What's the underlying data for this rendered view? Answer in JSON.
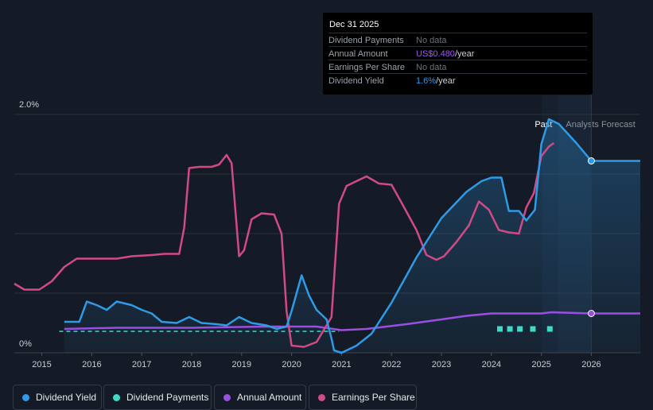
{
  "chart_data": {
    "type": "line",
    "title": "",
    "xlabel": "",
    "ylabel": "",
    "x_range": [
      2014.45,
      2026.98
    ],
    "y_range": [
      0,
      2.0
    ],
    "y_ticks": [
      {
        "value": 2.0,
        "label": "2.0%"
      },
      {
        "value": 0,
        "label": "0%"
      }
    ],
    "x_ticks": [
      "2015",
      "2016",
      "2017",
      "2018",
      "2019",
      "2020",
      "2021",
      "2022",
      "2023",
      "2024",
      "2025",
      "2026"
    ],
    "past_label": "Past",
    "forecast_label": "Analysts Forecast",
    "forecast_start": 2025.33,
    "series": [
      {
        "name": "Dividend Yield",
        "color": "#2f9ae6",
        "area": true,
        "points": [
          [
            2015.45,
            0.26
          ],
          [
            2015.75,
            0.26
          ],
          [
            2015.9,
            0.43
          ],
          [
            2016.1,
            0.4
          ],
          [
            2016.3,
            0.36
          ],
          [
            2016.5,
            0.43
          ],
          [
            2016.8,
            0.4
          ],
          [
            2017.0,
            0.36
          ],
          [
            2017.2,
            0.33
          ],
          [
            2017.4,
            0.26
          ],
          [
            2017.7,
            0.25
          ],
          [
            2017.95,
            0.3
          ],
          [
            2018.2,
            0.25
          ],
          [
            2018.5,
            0.24
          ],
          [
            2018.7,
            0.23
          ],
          [
            2018.95,
            0.3
          ],
          [
            2019.2,
            0.25
          ],
          [
            2019.5,
            0.23
          ],
          [
            2019.7,
            0.2
          ],
          [
            2019.9,
            0.22
          ],
          [
            2020.0,
            0.35
          ],
          [
            2020.2,
            0.65
          ],
          [
            2020.35,
            0.48
          ],
          [
            2020.5,
            0.36
          ],
          [
            2020.7,
            0.28
          ],
          [
            2020.8,
            0.12
          ],
          [
            2020.85,
            0.02
          ],
          [
            2021.0,
            0.0
          ],
          [
            2021.3,
            0.06
          ],
          [
            2021.6,
            0.16
          ],
          [
            2022.0,
            0.42
          ],
          [
            2022.5,
            0.8
          ],
          [
            2023.0,
            1.13
          ],
          [
            2023.5,
            1.35
          ],
          [
            2023.8,
            1.44
          ],
          [
            2024.0,
            1.47
          ],
          [
            2024.2,
            1.47
          ],
          [
            2024.35,
            1.19
          ],
          [
            2024.55,
            1.19
          ],
          [
            2024.7,
            1.11
          ],
          [
            2024.87,
            1.2
          ],
          [
            2025.0,
            1.75
          ],
          [
            2025.15,
            1.96
          ],
          [
            2025.35,
            1.92
          ],
          [
            2025.7,
            1.76
          ],
          [
            2026.0,
            1.61
          ],
          [
            2026.98,
            1.61
          ]
        ]
      },
      {
        "name": "Dividend Payments",
        "color": "#3fd9c6",
        "dashed": true,
        "points": [
          [
            2015.35,
            0.18
          ],
          [
            2020.95,
            0.18
          ]
        ],
        "forecast_markers": [
          2024.17,
          2024.37,
          2024.57,
          2024.83,
          2025.17
        ]
      },
      {
        "name": "Annual Amount",
        "color": "#9b4fe0",
        "points": [
          [
            2015.45,
            0.2
          ],
          [
            2016.5,
            0.21
          ],
          [
            2018.0,
            0.21
          ],
          [
            2019.5,
            0.22
          ],
          [
            2020.5,
            0.22
          ],
          [
            2021.0,
            0.19
          ],
          [
            2021.5,
            0.2
          ],
          [
            2022.3,
            0.24
          ],
          [
            2023.0,
            0.28
          ],
          [
            2023.5,
            0.31
          ],
          [
            2024.0,
            0.33
          ],
          [
            2025.0,
            0.33
          ],
          [
            2025.2,
            0.34
          ],
          [
            2026.0,
            0.33
          ],
          [
            2026.98,
            0.33
          ]
        ]
      },
      {
        "name": "Earnings Per Share",
        "color": "#d04a86",
        "points": [
          [
            2014.45,
            0.58
          ],
          [
            2014.65,
            0.53
          ],
          [
            2014.95,
            0.53
          ],
          [
            2015.2,
            0.6
          ],
          [
            2015.45,
            0.72
          ],
          [
            2015.7,
            0.79
          ],
          [
            2016.0,
            0.79
          ],
          [
            2016.5,
            0.79
          ],
          [
            2016.8,
            0.81
          ],
          [
            2017.2,
            0.82
          ],
          [
            2017.45,
            0.83
          ],
          [
            2017.75,
            0.83
          ],
          [
            2017.85,
            1.05
          ],
          [
            2017.95,
            1.55
          ],
          [
            2018.15,
            1.56
          ],
          [
            2018.4,
            1.56
          ],
          [
            2018.55,
            1.58
          ],
          [
            2018.7,
            1.66
          ],
          [
            2018.8,
            1.59
          ],
          [
            2018.95,
            0.81
          ],
          [
            2019.05,
            0.86
          ],
          [
            2019.2,
            1.12
          ],
          [
            2019.4,
            1.17
          ],
          [
            2019.65,
            1.16
          ],
          [
            2019.8,
            1.0
          ],
          [
            2019.9,
            0.35
          ],
          [
            2020.0,
            0.06
          ],
          [
            2020.25,
            0.05
          ],
          [
            2020.5,
            0.09
          ],
          [
            2020.8,
            0.3
          ],
          [
            2020.95,
            1.25
          ],
          [
            2021.1,
            1.4
          ],
          [
            2021.3,
            1.44
          ],
          [
            2021.5,
            1.48
          ],
          [
            2021.75,
            1.42
          ],
          [
            2022.0,
            1.41
          ],
          [
            2022.2,
            1.26
          ],
          [
            2022.5,
            1.03
          ],
          [
            2022.7,
            0.82
          ],
          [
            2022.9,
            0.78
          ],
          [
            2023.05,
            0.81
          ],
          [
            2023.3,
            0.93
          ],
          [
            2023.55,
            1.07
          ],
          [
            2023.75,
            1.27
          ],
          [
            2023.95,
            1.2
          ],
          [
            2024.15,
            1.03
          ],
          [
            2024.35,
            1.01
          ],
          [
            2024.55,
            1.0
          ],
          [
            2024.7,
            1.22
          ],
          [
            2024.85,
            1.34
          ],
          [
            2025.0,
            1.65
          ],
          [
            2025.15,
            1.73
          ],
          [
            2025.25,
            1.76
          ]
        ]
      }
    ],
    "highlight_date": 2026.0
  },
  "tooltip": {
    "date": "Dec 31 2025",
    "rows": [
      {
        "label": "Dividend Payments",
        "value": "No data",
        "value_color": "#6b727c"
      },
      {
        "label": "Annual Amount",
        "value_prefix": "US$0.480",
        "value_suffix": "/year",
        "value_color": "#a056f0"
      },
      {
        "label": "Earnings Per Share",
        "value": "No data",
        "value_color": "#6b727c"
      },
      {
        "label": "Dividend Yield",
        "value_prefix": "1.6%",
        "value_suffix": "/year",
        "value_color": "#2f9ae6"
      }
    ]
  },
  "legend": [
    {
      "label": "Dividend Yield",
      "color": "#2f9ae6"
    },
    {
      "label": "Dividend Payments",
      "color": "#3fd9c6"
    },
    {
      "label": "Annual Amount",
      "color": "#9b4fe0"
    },
    {
      "label": "Earnings Per Share",
      "color": "#d04a86"
    }
  ]
}
